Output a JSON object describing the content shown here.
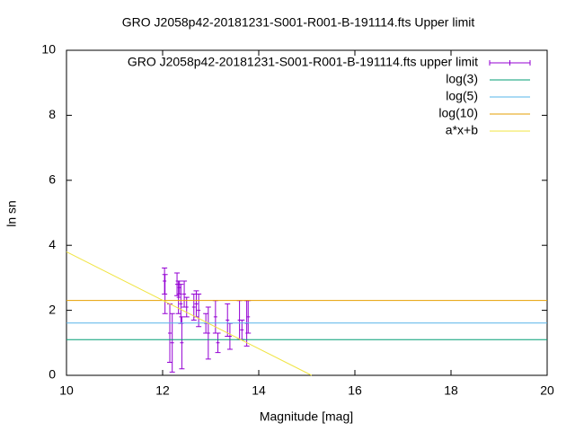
{
  "chart_data": {
    "type": "errorbar",
    "title": "GRO J2058p42-20181231-S001-R001-B-191114.fts Upper limit",
    "x_label": "Magnitude [mag]",
    "y_label": "ln sn",
    "xlim": [
      10,
      20
    ],
    "ylim": [
      0,
      10
    ],
    "xticks": [
      10,
      12,
      14,
      16,
      18,
      20
    ],
    "yticks": [
      0,
      2,
      4,
      6,
      8,
      10
    ],
    "legend": "top-right",
    "series": [
      {
        "name": "GRO J2058p42-20181231-S001-R001-B-191114.fts upper limit",
        "kind": "errorbar",
        "color": "#9400d3",
        "x": [
          12.04,
          12.05,
          12.15,
          12.2,
          12.3,
          12.33,
          12.35,
          12.38,
          12.4,
          12.45,
          12.5,
          12.65,
          12.7,
          12.75,
          12.9,
          12.95,
          13.1,
          13.15,
          13.35,
          13.4,
          13.6,
          13.65,
          13.75,
          13.78
        ],
        "values": [
          2.9,
          2.5,
          1.3,
          1.0,
          2.8,
          2.4,
          2.7,
          2.2,
          1.0,
          2.5,
          2.1,
          2.1,
          2.2,
          2.0,
          1.6,
          1.3,
          1.8,
          1.0,
          1.7,
          1.2,
          1.7,
          1.4,
          1.6,
          1.8
        ],
        "errors": [
          0.4,
          0.6,
          0.9,
          0.9,
          0.35,
          0.5,
          0.2,
          0.6,
          0.8,
          0.4,
          0.3,
          0.4,
          0.4,
          0.5,
          0.3,
          0.8,
          0.5,
          0.3,
          0.5,
          0.4,
          0.6,
          0.3,
          0.7,
          0.5
        ]
      },
      {
        "name": "log(3)",
        "kind": "line",
        "color": "#009e73",
        "x": [
          10,
          20
        ],
        "values": [
          1.0986,
          1.0986
        ]
      },
      {
        "name": "log(5)",
        "kind": "line",
        "color": "#56b4e9",
        "x": [
          10,
          20
        ],
        "values": [
          1.6094,
          1.6094
        ]
      },
      {
        "name": "log(10)",
        "kind": "line",
        "color": "#e69f00",
        "x": [
          10,
          20
        ],
        "values": [
          2.3026,
          2.3026
        ]
      },
      {
        "name": "a*x+b",
        "kind": "line",
        "color": "#f0e442",
        "x": [
          10,
          15.1
        ],
        "values": [
          3.8,
          0
        ]
      }
    ]
  }
}
